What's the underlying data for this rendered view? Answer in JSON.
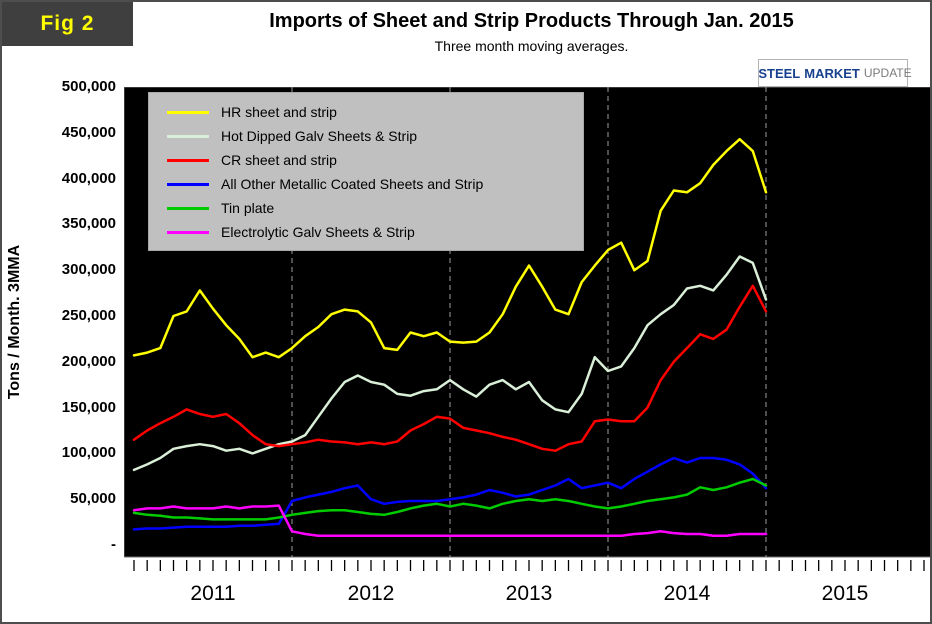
{
  "fig_label": "Fig 2",
  "title": "Imports of Sheet and Strip Products Through Jan. 2015",
  "subtitle": "Three month moving averages.",
  "logo": {
    "steel": "STEEL",
    "market": "MARKET",
    "update": "UPDATE"
  },
  "y_axis_label": "Tons / Month. 3MMA",
  "chart_data": {
    "type": "line",
    "title": "Imports of Sheet and Strip Products Through Jan. 2015",
    "subtitle": "Three month moving averages.",
    "ylabel": "Tons / Month. 3MMA",
    "ylim": [
      0,
      500000
    ],
    "x_unit": "month",
    "x_start": "2011-01",
    "x_end": "2015-01",
    "grid": "vertical-dashed-at-year-boundaries",
    "legend_position": "top-left-inside",
    "plot_background": "#000000",
    "x_year_labels": [
      "2011",
      "2012",
      "2013",
      "2014",
      "2015"
    ],
    "y_ticks": [
      {
        "label": "500,000",
        "value": 500000
      },
      {
        "label": "450,000",
        "value": 450000
      },
      {
        "label": "400,000",
        "value": 400000
      },
      {
        "label": "350,000",
        "value": 350000
      },
      {
        "label": "300,000",
        "value": 300000
      },
      {
        "label": "250,000",
        "value": 250000
      },
      {
        "label": "200,000",
        "value": 200000
      },
      {
        "label": "150,000",
        "value": 150000
      },
      {
        "label": "100,000",
        "value": 100000
      },
      {
        "label": "50,000",
        "value": 50000
      },
      {
        "label": "-",
        "value": 0
      }
    ],
    "series": [
      {
        "name": "HR sheet and strip",
        "color": "#ffff00",
        "values": [
          207000,
          210000,
          215000,
          250000,
          255000,
          278000,
          258000,
          240000,
          225000,
          205000,
          210000,
          205000,
          215000,
          228000,
          238000,
          252000,
          257000,
          255000,
          243000,
          215000,
          213000,
          232000,
          228000,
          232000,
          222000,
          221000,
          222000,
          232000,
          252000,
          282000,
          305000,
          282000,
          257000,
          252000,
          287000,
          305000,
          322000,
          330000,
          300000,
          310000,
          365000,
          387000,
          385000,
          395000,
          415000,
          430000,
          443000,
          430000,
          385000
        ]
      },
      {
        "name": "Hot Dipped Galv Sheets & Strip",
        "color": "#d9efd7",
        "values": [
          82000,
          88000,
          95000,
          105000,
          108000,
          110000,
          108000,
          103000,
          105000,
          100000,
          105000,
          110000,
          113000,
          120000,
          140000,
          160000,
          178000,
          185000,
          178000,
          175000,
          165000,
          163000,
          168000,
          170000,
          180000,
          170000,
          162000,
          175000,
          180000,
          170000,
          178000,
          158000,
          148000,
          145000,
          165000,
          205000,
          190000,
          195000,
          215000,
          240000,
          252000,
          262000,
          280000,
          283000,
          278000,
          295000,
          315000,
          308000,
          268000
        ]
      },
      {
        "name": "CR sheet and strip",
        "color": "#ff0000",
        "values": [
          115000,
          125000,
          133000,
          140000,
          148000,
          143000,
          140000,
          143000,
          133000,
          120000,
          110000,
          108000,
          110000,
          112000,
          115000,
          113000,
          112000,
          110000,
          112000,
          110000,
          113000,
          125000,
          132000,
          140000,
          138000,
          128000,
          125000,
          122000,
          118000,
          115000,
          110000,
          105000,
          103000,
          110000,
          113000,
          135000,
          137000,
          135000,
          135000,
          150000,
          180000,
          200000,
          215000,
          230000,
          225000,
          235000,
          260000,
          283000,
          255000
        ]
      },
      {
        "name": "All Other Metallic Coated Sheets and Strip",
        "color": "#0000ff",
        "values": [
          17000,
          18000,
          18000,
          19000,
          20000,
          20000,
          20000,
          20000,
          21000,
          21000,
          22000,
          23000,
          48000,
          52000,
          55000,
          58000,
          62000,
          65000,
          50000,
          45000,
          47000,
          48000,
          48000,
          48000,
          50000,
          52000,
          55000,
          60000,
          57000,
          53000,
          55000,
          60000,
          65000,
          72000,
          62000,
          65000,
          68000,
          62000,
          72000,
          80000,
          88000,
          95000,
          90000,
          95000,
          95000,
          93000,
          88000,
          78000,
          62000
        ]
      },
      {
        "name": "Tin plate",
        "color": "#00cc00",
        "values": [
          35000,
          33000,
          32000,
          30000,
          30000,
          29000,
          28000,
          28000,
          28000,
          28000,
          28000,
          30000,
          33000,
          35000,
          37000,
          38000,
          38000,
          36000,
          34000,
          33000,
          36000,
          40000,
          43000,
          45000,
          42000,
          45000,
          43000,
          40000,
          45000,
          48000,
          50000,
          48000,
          50000,
          48000,
          45000,
          42000,
          40000,
          42000,
          45000,
          48000,
          50000,
          52000,
          55000,
          63000,
          60000,
          63000,
          68000,
          72000,
          65000
        ]
      },
      {
        "name": "Electrolytic Galv Sheets & Strip",
        "color": "#ff00ff",
        "values": [
          38000,
          40000,
          40000,
          42000,
          40000,
          40000,
          40000,
          42000,
          40000,
          42000,
          42000,
          43000,
          15000,
          12000,
          10000,
          10000,
          10000,
          10000,
          10000,
          10000,
          10000,
          10000,
          10000,
          10000,
          10000,
          10000,
          10000,
          10000,
          10000,
          10000,
          10000,
          10000,
          10000,
          10000,
          10000,
          10000,
          10000,
          10000,
          12000,
          13000,
          15000,
          13000,
          12000,
          12000,
          10000,
          10000,
          12000,
          12000,
          12000
        ]
      }
    ]
  }
}
